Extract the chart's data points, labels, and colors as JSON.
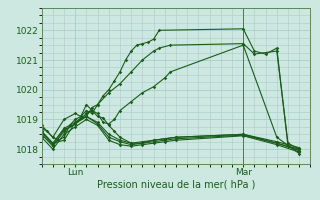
{
  "background_color": "#cce8e0",
  "grid_color": "#aacccc",
  "line_color": "#1a5c1a",
  "xlabel": "Pression niveau de la mer( hPa )",
  "ylim": [
    1017.5,
    1022.5
  ],
  "xlim": [
    0,
    48
  ],
  "yticks": [
    1018,
    1019,
    1020,
    1021,
    1022
  ],
  "xtick_positions": [
    6,
    36
  ],
  "xtick_labels": [
    "Lun",
    "Mar"
  ],
  "vline_x": 36,
  "series": [
    [
      0,
      1018.7,
      1,
      1018.6,
      2,
      1018.4,
      3,
      1018.3,
      4,
      1018.4,
      5,
      1018.8,
      6,
      1019.0,
      7,
      1019.1,
      8,
      1019.3,
      9,
      1019.2,
      10,
      1019.5,
      11,
      1019.8,
      12,
      1020.0,
      13,
      1020.3,
      14,
      1020.6,
      15,
      1021.0,
      16,
      1021.3,
      17,
      1021.5,
      18,
      1021.55,
      19,
      1021.6,
      20,
      1021.7,
      21,
      1022.0,
      36,
      1022.05,
      38,
      1021.3,
      40,
      1021.2,
      42,
      1021.4,
      44,
      1018.1,
      46,
      1017.95
    ],
    [
      0,
      1018.6,
      2,
      1018.2,
      4,
      1018.3,
      6,
      1018.9,
      7,
      1019.05,
      8,
      1019.1,
      9,
      1019.4,
      10,
      1019.5,
      12,
      1019.9,
      14,
      1020.2,
      16,
      1020.6,
      18,
      1021.0,
      20,
      1021.3,
      21,
      1021.4,
      23,
      1021.5,
      36,
      1021.55,
      38,
      1021.2,
      42,
      1021.3,
      44,
      1018.2,
      46,
      1018.0
    ],
    [
      0,
      1018.8,
      2,
      1018.4,
      4,
      1019.0,
      6,
      1019.2,
      7,
      1019.1,
      8,
      1019.5,
      9,
      1019.3,
      10,
      1019.2,
      11,
      1018.9,
      12,
      1018.85,
      13,
      1019.0,
      14,
      1019.3,
      16,
      1019.6,
      18,
      1019.9,
      20,
      1020.1,
      22,
      1020.4,
      23,
      1020.6,
      36,
      1021.5,
      42,
      1018.4,
      46,
      1017.85
    ],
    [
      0,
      1018.5,
      2,
      1018.1,
      4,
      1018.6,
      6,
      1018.85,
      8,
      1019.2,
      9,
      1019.3,
      10,
      1019.1,
      11,
      1019.05,
      12,
      1018.8,
      13,
      1018.6,
      14,
      1018.4,
      16,
      1018.2,
      18,
      1018.2,
      20,
      1018.3,
      22,
      1018.35,
      24,
      1018.4,
      36,
      1018.5,
      42,
      1018.2,
      46,
      1017.95
    ],
    [
      0,
      1018.4,
      2,
      1018.0,
      4,
      1018.5,
      6,
      1018.75,
      8,
      1019.0,
      10,
      1018.8,
      12,
      1018.3,
      14,
      1018.15,
      16,
      1018.1,
      18,
      1018.15,
      20,
      1018.2,
      22,
      1018.25,
      24,
      1018.3,
      36,
      1018.45,
      42,
      1018.15,
      46,
      1017.9
    ],
    [
      0,
      1018.6,
      2,
      1018.2,
      4,
      1018.7,
      6,
      1018.9,
      8,
      1019.1,
      10,
      1018.9,
      12,
      1018.5,
      14,
      1018.3,
      16,
      1018.2,
      18,
      1018.25,
      20,
      1018.3,
      22,
      1018.35,
      24,
      1018.4,
      36,
      1018.5,
      42,
      1018.25,
      46,
      1018.05
    ],
    [
      0,
      1018.55,
      2,
      1018.15,
      4,
      1018.65,
      6,
      1018.85,
      8,
      1019.1,
      10,
      1018.85,
      12,
      1018.4,
      14,
      1018.25,
      16,
      1018.15,
      18,
      1018.2,
      20,
      1018.25,
      22,
      1018.3,
      24,
      1018.35,
      36,
      1018.47,
      42,
      1018.2,
      46,
      1018.0
    ]
  ]
}
